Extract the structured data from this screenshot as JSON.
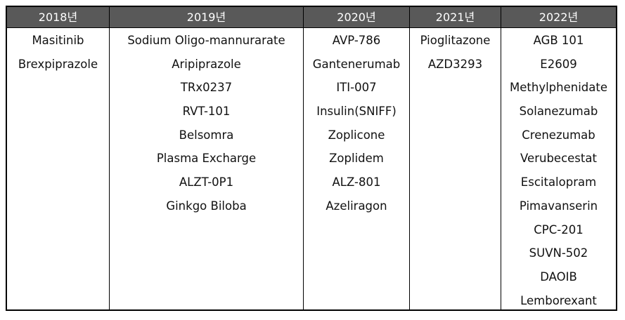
{
  "table": {
    "headers": [
      "2018년",
      "2019년",
      "2020년",
      "2021년",
      "2022년"
    ],
    "columns": [
      [
        "Masitinib",
        "Brexpiprazole"
      ],
      [
        "Sodium Oligo-mannurarate",
        "Aripiprazole",
        "TRx0237",
        "RVT-101",
        "Belsomra",
        "Plasma Excharge",
        "ALZT-0P1",
        "Ginkgo Biloba"
      ],
      [
        "AVP-786",
        "Gantenerumab",
        "ITI-007",
        "Insulin(SNIFF)",
        "Zoplicone",
        "Zoplidem",
        "ALZ-801",
        "Azeliragon"
      ],
      [
        "Pioglitazone",
        "AZD3293"
      ],
      [
        "AGB 101",
        "E2609",
        "Methylphenidate",
        "Solanezumab",
        "Crenezumab",
        "Verubecestat",
        "Escitalopram",
        "Pimavanserin",
        "CPC-201",
        "SUVN-502",
        "DAOIB",
        "Lemborexant"
      ]
    ]
  }
}
